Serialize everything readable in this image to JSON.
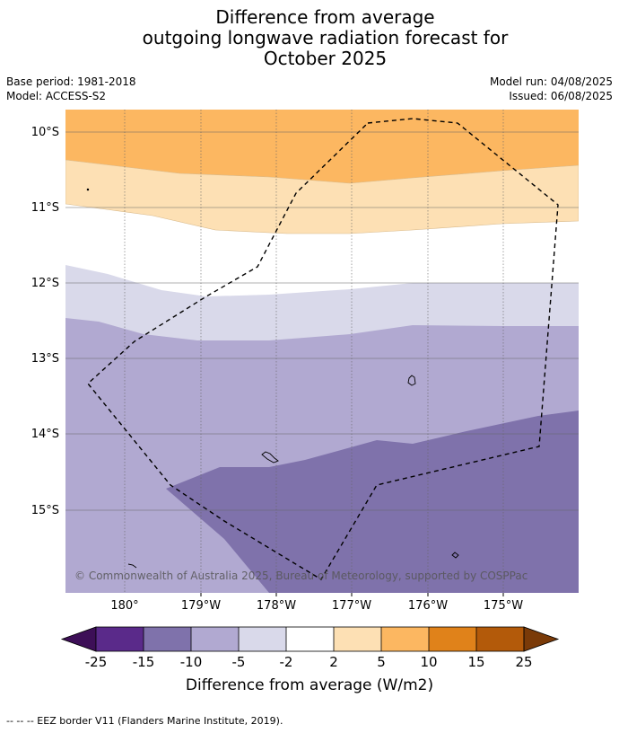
{
  "title": {
    "line1": "Difference from average",
    "line2": "outgoing longwave radiation forecast for",
    "line3": "October 2025"
  },
  "meta": {
    "base_period": "Base period: 1981-2018",
    "model": "Model: ACCESS-S2",
    "model_run": "Model run: 04/08/2025",
    "issued": "Issued: 06/08/2025"
  },
  "map": {
    "lat_labels": [
      "10°S",
      "11°S",
      "12°S",
      "13°S",
      "14°S",
      "15°S"
    ],
    "lon_labels": [
      "180°",
      "179°W",
      "178°W",
      "177°W",
      "176°W",
      "175°W"
    ],
    "copyright": "© Commonwealth of Australia 2025, Bureau of Meteorology, supported by COSPPac"
  },
  "colorbar": {
    "ticks": [
      "-25",
      "-15",
      "-10",
      "-5",
      "-2",
      "2",
      "5",
      "10",
      "15",
      "25"
    ],
    "colors": [
      "#3d0f57",
      "#5a2a8a",
      "#7f72ab",
      "#b1a9d1",
      "#d9d9ea",
      "#ffffff",
      "#fde0b4",
      "#fcb761",
      "#e0821a",
      "#b35a0a",
      "#7a3a08"
    ],
    "title": "Difference from average (W/m2)"
  },
  "footnote": "--  --  -- EEZ border V11 (Flanders Marine Institute, 2019)."
}
